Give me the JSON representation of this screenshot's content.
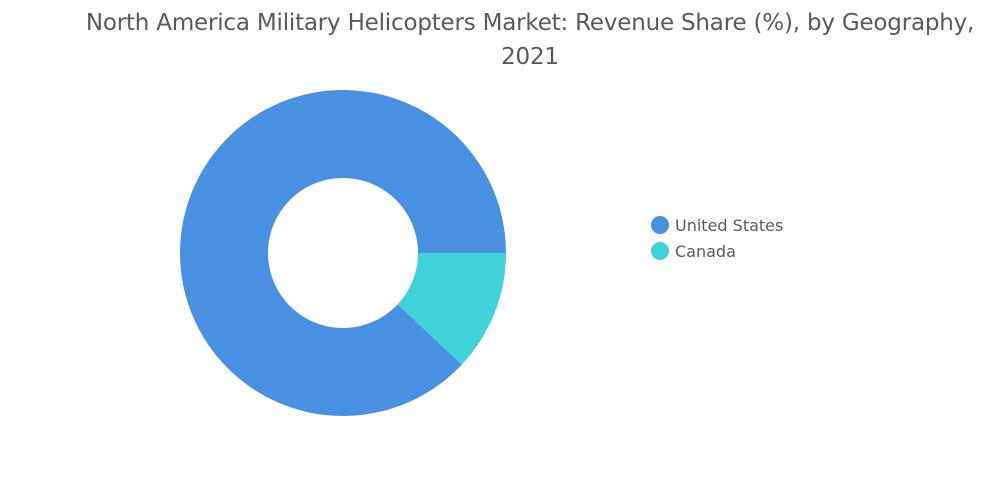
{
  "chart_data": {
    "type": "pie",
    "title": "North America Military Helicopters Market: Revenue Share (%), by Geography, 2021",
    "categories": [
      "United States",
      "Canada"
    ],
    "values": [
      88,
      12
    ],
    "colors": [
      "#4a90e2",
      "#40d2d8"
    ],
    "legend_position": "right",
    "donut": true
  }
}
